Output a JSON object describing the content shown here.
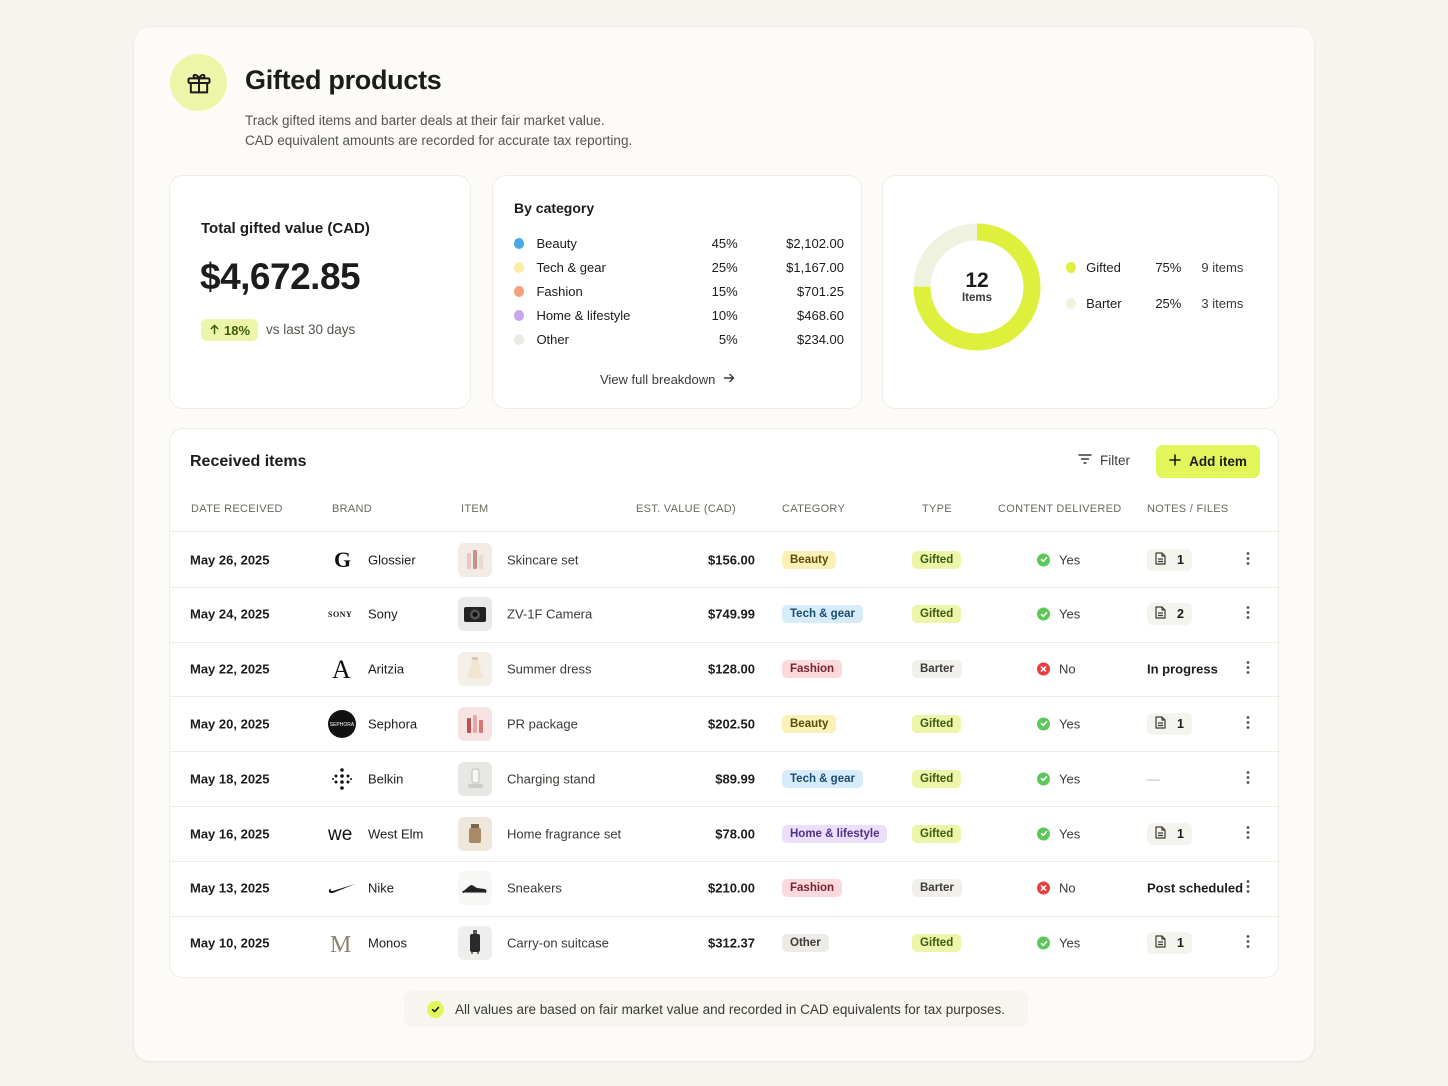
{
  "header": {
    "title": "Gifted products",
    "subtitle_line1": "Track gifted items and barter deals at their fair market value.",
    "subtitle_line2": "CAD equivalent amounts are recorded for accurate tax reporting.",
    "icon": "gift-icon"
  },
  "total_card": {
    "label": "Total gifted value (CAD)",
    "value": "$4,672.85",
    "delta": "18%",
    "delta_caption": "vs last 30 days"
  },
  "category_card": {
    "title": "By category",
    "rows": [
      {
        "name": "Beauty",
        "pct": "45%",
        "amount": "$2,102.00",
        "color": "#4aa8e8"
      },
      {
        "name": "Tech & gear",
        "pct": "25%",
        "amount": "$1,167.00",
        "color": "#faeeaa"
      },
      {
        "name": "Fashion",
        "pct": "15%",
        "amount": "$701.25",
        "color": "#f6a07a"
      },
      {
        "name": "Home & lifestyle",
        "pct": "10%",
        "amount": "$468.60",
        "color": "#c9a6f0"
      },
      {
        "name": "Other",
        "pct": "5%",
        "amount": "$234.00",
        "color": "#ebeae4"
      }
    ],
    "link": "View full breakdown"
  },
  "items_card": {
    "total": "12",
    "total_label": "Items",
    "legend": [
      {
        "name": "Gifted",
        "pct": "75%",
        "count": "9 items",
        "color": "#dff03c",
        "fraction": 0.75
      },
      {
        "name": "Barter",
        "pct": "25%",
        "count": "3 items",
        "color": "#f0f2e0",
        "fraction": 0.25
      }
    ]
  },
  "table": {
    "title": "Received items",
    "filter_label": "Filter",
    "add_label": "Add item",
    "headers": {
      "date": "DATE RECEIVED",
      "brand": "BRAND",
      "item": "ITEM",
      "value": "EST. VALUE (CAD)",
      "category": "CATEGORY",
      "type": "TYPE",
      "content": "CONTENT DELIVERED",
      "notes": "NOTES / FILES"
    },
    "rows": [
      {
        "date": "May 26, 2025",
        "brand": "Glossier",
        "logo": "glossier-logo",
        "item": "Skincare set",
        "value": "$156.00",
        "category": "Beauty",
        "type": "Gifted",
        "content": "Yes",
        "notes_files": "1",
        "notes_text": ""
      },
      {
        "date": "May 24, 2025",
        "brand": "Sony",
        "logo": "sony-logo",
        "item": "ZV-1F Camera",
        "value": "$749.99",
        "category": "Tech & gear",
        "type": "Gifted",
        "content": "Yes",
        "notes_files": "2",
        "notes_text": ""
      },
      {
        "date": "May 22, 2025",
        "brand": "Aritzia",
        "logo": "aritzia-logo",
        "item": "Summer dress",
        "value": "$128.00",
        "category": "Fashion",
        "type": "Barter",
        "content": "No",
        "notes_files": "",
        "notes_text": "In progress"
      },
      {
        "date": "May 20, 2025",
        "brand": "Sephora",
        "logo": "sephora-logo",
        "item": "PR package",
        "value": "$202.50",
        "category": "Beauty",
        "type": "Gifted",
        "content": "Yes",
        "notes_files": "1",
        "notes_text": ""
      },
      {
        "date": "May 18, 2025",
        "brand": "Belkin",
        "logo": "belkin-logo",
        "item": "Charging stand",
        "value": "$89.99",
        "category": "Tech & gear",
        "type": "Gifted",
        "content": "Yes",
        "notes_files": "",
        "notes_text": "—"
      },
      {
        "date": "May 16, 2025",
        "brand": "West Elm",
        "logo": "west-elm-logo",
        "item": "Home fragrance set",
        "value": "$78.00",
        "category": "Home & lifestyle",
        "type": "Gifted",
        "content": "Yes",
        "notes_files": "1",
        "notes_text": ""
      },
      {
        "date": "May 13, 2025",
        "brand": "Nike",
        "logo": "nike-logo",
        "item": "Sneakers",
        "value": "$210.00",
        "category": "Fashion",
        "type": "Barter",
        "content": "No",
        "notes_files": "",
        "notes_text": "Post scheduled"
      },
      {
        "date": "May 10, 2025",
        "brand": "Monos",
        "logo": "monos-logo",
        "item": "Carry-on suitcase",
        "value": "$312.37",
        "category": "Other",
        "type": "Gifted",
        "content": "Yes",
        "notes_files": "1",
        "notes_text": ""
      }
    ]
  },
  "pill_colors": {
    "Beauty": {
      "bg": "#fbf1b6",
      "fg": "#5c4a07"
    },
    "Tech & gear": {
      "bg": "#d7ecfb",
      "fg": "#1b4b72"
    },
    "Fashion": {
      "bg": "#fbd9dd",
      "fg": "#7a2230"
    },
    "Home & lifestyle": {
      "bg": "#ecdffb",
      "fg": "#53308a"
    },
    "Other": {
      "bg": "#ecebe6",
      "fg": "#3b3a36"
    },
    "Gifted": {
      "bg": "#ecf5a8",
      "fg": "#3c5a12"
    },
    "Barter": {
      "bg": "#f1f0eb",
      "fg": "#3b3a36"
    }
  },
  "footer": {
    "note": "All values are based on fair market value and recorded in CAD equivalents for tax purposes."
  }
}
